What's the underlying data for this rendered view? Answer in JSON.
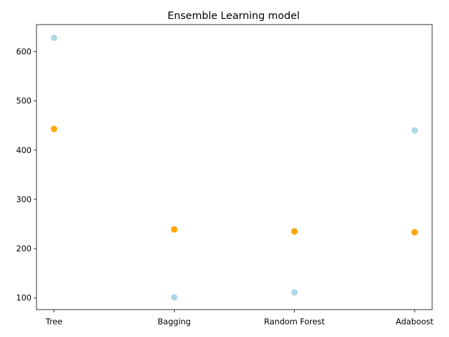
{
  "chart_data": {
    "type": "scatter",
    "title": "Ensemble Learning model",
    "xlabel": "",
    "ylabel": "",
    "categories": [
      "Tree",
      "Bagging",
      "Random Forest",
      "Adaboost"
    ],
    "yticks": [
      100,
      200,
      300,
      400,
      500,
      600
    ],
    "ylim": [
      76,
      655
    ],
    "grid": false,
    "legend": "none",
    "series": [
      {
        "color": "#add8e6",
        "values": [
          628,
          101,
          111,
          440
        ]
      },
      {
        "color": "#ffa500",
        "values": [
          443,
          239,
          235,
          233
        ]
      }
    ]
  }
}
